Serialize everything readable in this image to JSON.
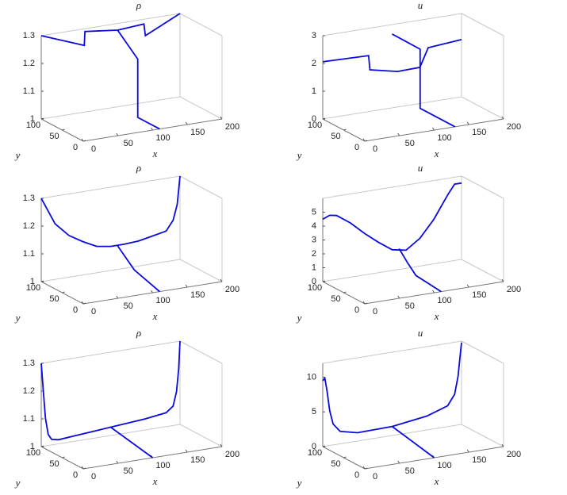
{
  "chart_data": [
    {
      "type": "line3d",
      "title": "ρ",
      "x_label": "x",
      "y_label": "y",
      "color": "#0a0adc",
      "xlim": [
        0,
        200
      ],
      "ylim": [
        0,
        100
      ],
      "zlim": [
        1,
        1.3
      ],
      "xticks": [
        0,
        50,
        100,
        150,
        200
      ],
      "yticks": [
        0,
        50,
        100
      ],
      "zticks": [
        1,
        1.1,
        1.2,
        1.3
      ],
      "series": [
        {
          "x": [
            0,
            62,
            63,
            110,
            148,
            150,
            200
          ],
          "y": [
            100,
            100,
            100,
            100,
            100,
            100,
            100
          ],
          "z": [
            1.3,
            1.24,
            1.29,
            1.276,
            1.283,
            1.24,
            1.3
          ]
        },
        {
          "x": [
            110,
            110,
            110,
            110
          ],
          "y": [
            100,
            52,
            52,
            0
          ],
          "z": [
            1.276,
            1.21,
            1,
            1
          ]
        }
      ]
    },
    {
      "type": "line3d",
      "title": "u",
      "x_label": "x",
      "y_label": "y",
      "color": "#0a0adc",
      "xlim": [
        0,
        200
      ],
      "ylim": [
        0,
        100
      ],
      "zlim": [
        0,
        3
      ],
      "xticks": [
        0,
        50,
        100,
        150,
        200
      ],
      "yticks": [
        0,
        50,
        100
      ],
      "zticks": [
        0,
        1,
        2,
        3
      ],
      "series": [
        {
          "x": [
            0,
            66,
            68,
            108,
            140,
            152,
            200
          ],
          "y": [
            100,
            100,
            100,
            100,
            100,
            100,
            100
          ],
          "z": [
            2.06,
            2.02,
            1.5,
            1.28,
            1.3,
            1.96,
            2.06
          ]
        },
        {
          "x": [
            100,
            130,
            130,
            130
          ],
          "y": [
            100,
            83,
            83,
            0
          ],
          "z": [
            2.66,
            2.13,
            0,
            0
          ]
        }
      ]
    },
    {
      "type": "line3d",
      "title": "ρ",
      "x_label": "x",
      "y_label": "y",
      "color": "#0a0adc",
      "xlim": [
        0,
        200
      ],
      "ylim": [
        0,
        100
      ],
      "zlim": [
        1,
        1.3
      ],
      "xticks": [
        0,
        50,
        100,
        150,
        200
      ],
      "yticks": [
        0,
        50,
        100
      ],
      "zticks": [
        1,
        1.1,
        1.2,
        1.3
      ],
      "series": [
        {
          "x": [
            0,
            20,
            40,
            60,
            80,
            100,
            120,
            140,
            160,
            180,
            190,
            196,
            200
          ],
          "y": [
            100,
            100,
            100,
            100,
            100,
            100,
            100,
            100,
            100,
            100,
            100,
            100,
            100
          ],
          "z": [
            1.3,
            1.2,
            1.15,
            1.12,
            1.095,
            1.087,
            1.087,
            1.09,
            1.1,
            1.11,
            1.145,
            1.2,
            1.3
          ]
        },
        {
          "x": [
            110,
            110,
            110
          ],
          "y": [
            100,
            60,
            0
          ],
          "z": [
            1.085,
            1.03,
            1
          ]
        }
      ]
    },
    {
      "type": "line3d",
      "title": "u",
      "x_label": "x",
      "y_label": "y",
      "color": "#0a0adc",
      "xlim": [
        0,
        200
      ],
      "ylim": [
        0,
        100
      ],
      "zlim": [
        0,
        6
      ],
      "xticks": [
        0,
        50,
        100,
        150,
        200
      ],
      "yticks": [
        0,
        50,
        100
      ],
      "zticks": [
        0,
        1,
        2,
        3,
        4,
        5
      ],
      "series": [
        {
          "x": [
            0,
            10,
            20,
            40,
            60,
            80,
            100,
            120,
            140,
            160,
            180,
            190,
            200
          ],
          "y": [
            100,
            100,
            100,
            100,
            100,
            100,
            100,
            100,
            100,
            100,
            100,
            100,
            100
          ],
          "z": [
            4.5,
            4.7,
            4.6,
            3.9,
            3.0,
            2.2,
            1.5,
            1.3,
            2.0,
            3.2,
            4.8,
            5.5,
            5.5
          ]
        },
        {
          "x": [
            110,
            110,
            110,
            110
          ],
          "y": [
            100,
            80,
            60,
            0
          ],
          "z": [
            1.5,
            0.8,
            0.2,
            0
          ]
        }
      ]
    },
    {
      "type": "line3d",
      "title": "ρ",
      "x_label": "x",
      "y_label": "y",
      "color": "#0a0adc",
      "xlim": [
        0,
        200
      ],
      "ylim": [
        0,
        100
      ],
      "zlim": [
        1,
        1.3
      ],
      "xticks": [
        0,
        50,
        100,
        150,
        200
      ],
      "yticks": [
        0,
        50,
        100
      ],
      "zticks": [
        1,
        1.1,
        1.2,
        1.3
      ],
      "series": [
        {
          "x": [
            0,
            3,
            6,
            10,
            15,
            25,
            50,
            100,
            150,
            180,
            190,
            195,
            198,
            200
          ],
          "y": [
            100,
            100,
            100,
            100,
            100,
            100,
            100,
            100,
            100,
            100,
            100,
            100,
            100,
            100
          ],
          "z": [
            1.3,
            1.2,
            1.1,
            1.04,
            1.02,
            1.015,
            1.02,
            1.03,
            1.04,
            1.05,
            1.07,
            1.12,
            1.2,
            1.3
          ]
        },
        {
          "x": [
            100,
            100
          ],
          "y": [
            100,
            0
          ],
          "z": [
            1.03,
            1
          ]
        }
      ]
    },
    {
      "type": "line3d",
      "title": "u",
      "x_label": "x",
      "y_label": "y",
      "color": "#0a0adc",
      "xlim": [
        0,
        200
      ],
      "ylim": [
        0,
        100
      ],
      "zlim": [
        0,
        12
      ],
      "xticks": [
        0,
        50,
        100,
        150,
        200
      ],
      "yticks": [
        0,
        50,
        100
      ],
      "zticks": [
        0,
        5,
        10
      ],
      "series": [
        {
          "x": [
            0,
            3,
            6,
            10,
            15,
            25,
            50,
            100,
            150,
            180,
            190,
            195,
            198,
            200
          ],
          "y": [
            100,
            100,
            100,
            100,
            100,
            100,
            100,
            100,
            100,
            100,
            100,
            100,
            100,
            100
          ],
          "z": [
            9.5,
            9.8,
            8,
            5,
            3,
            1.8,
            1.2,
            1.3,
            2,
            3,
            4.5,
            7,
            10,
            11.8
          ]
        },
        {
          "x": [
            100,
            100
          ],
          "y": [
            100,
            0
          ],
          "z": [
            1.3,
            0
          ]
        }
      ]
    }
  ]
}
